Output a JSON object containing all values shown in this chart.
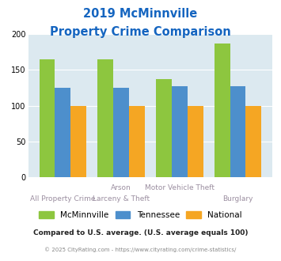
{
  "title_line1": "2019 McMinnville",
  "title_line2": "Property Crime Comparison",
  "cat_labels_row1": [
    "",
    "Arson",
    "Motor Vehicle Theft",
    ""
  ],
  "cat_labels_row2": [
    "All Property Crime",
    "Larceny & Theft",
    "",
    "Burglary"
  ],
  "mcminnville": [
    165,
    165,
    137,
    187
  ],
  "tennessee": [
    125,
    125,
    127,
    127
  ],
  "national": [
    100,
    100,
    100,
    100
  ],
  "color_mcminnville": "#8dc63f",
  "color_tennessee": "#4d8fcc",
  "color_national": "#f5a623",
  "ylim": [
    0,
    200
  ],
  "yticks": [
    0,
    50,
    100,
    150,
    200
  ],
  "background_color": "#dce9f0",
  "title_color": "#1565c0",
  "xlabel_color": "#9b8ea0",
  "footnote1": "Compared to U.S. average. (U.S. average equals 100)",
  "footnote2": "© 2025 CityRating.com - https://www.cityrating.com/crime-statistics/",
  "footnote1_color": "#222222",
  "footnote2_color": "#888888",
  "legend_labels": [
    "McMinnville",
    "Tennessee",
    "National"
  ]
}
